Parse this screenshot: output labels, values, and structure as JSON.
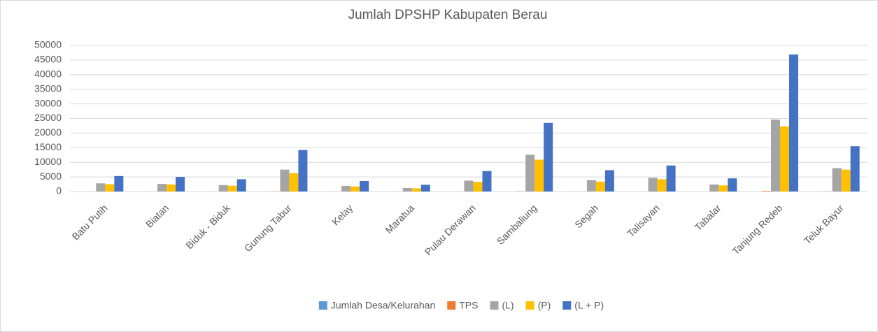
{
  "chart_data": {
    "type": "bar",
    "title": "Jumlah DPSHP Kabupaten Berau",
    "categories": [
      "Batu Putih",
      "Biatan",
      "Biduk - Biduk",
      "Gunung Tabur",
      "Kelay",
      "Maratua",
      "Pulau Derawan",
      "Sambaliung",
      "Segah",
      "Talisayan",
      "Tabalar",
      "Tanjung Redeb",
      "Teluk Bayur"
    ],
    "series": [
      {
        "name": "Jumlah Desa/Kelurahan",
        "color": "#5b9bd5",
        "values": [
          7,
          8,
          6,
          11,
          14,
          4,
          5,
          14,
          11,
          10,
          6,
          6,
          6
        ]
      },
      {
        "name": "TPS",
        "color": "#ed7d31",
        "values": [
          20,
          18,
          15,
          50,
          15,
          8,
          25,
          80,
          25,
          30,
          15,
          180,
          55
        ]
      },
      {
        "name": "(L)",
        "color": "#a5a5a5",
        "values": [
          2800,
          2600,
          2200,
          7500,
          1900,
          1200,
          3700,
          12600,
          3900,
          4700,
          2400,
          24600,
          8000
        ]
      },
      {
        "name": "(P)",
        "color": "#ffc000",
        "values": [
          2500,
          2400,
          2000,
          6300,
          1700,
          1100,
          3300,
          10900,
          3400,
          4200,
          2100,
          22300,
          7500
        ]
      },
      {
        "name": "(L + P)",
        "color": "#4472c4",
        "values": [
          5300,
          5000,
          4200,
          14200,
          3600,
          2300,
          7000,
          23500,
          7300,
          8900,
          4500,
          46900,
          15500
        ]
      }
    ],
    "ylim": [
      0,
      50000
    ],
    "yticks": [
      0,
      5000,
      10000,
      15000,
      20000,
      25000,
      30000,
      35000,
      40000,
      45000,
      50000
    ],
    "grid": true,
    "legend": "bottom"
  }
}
